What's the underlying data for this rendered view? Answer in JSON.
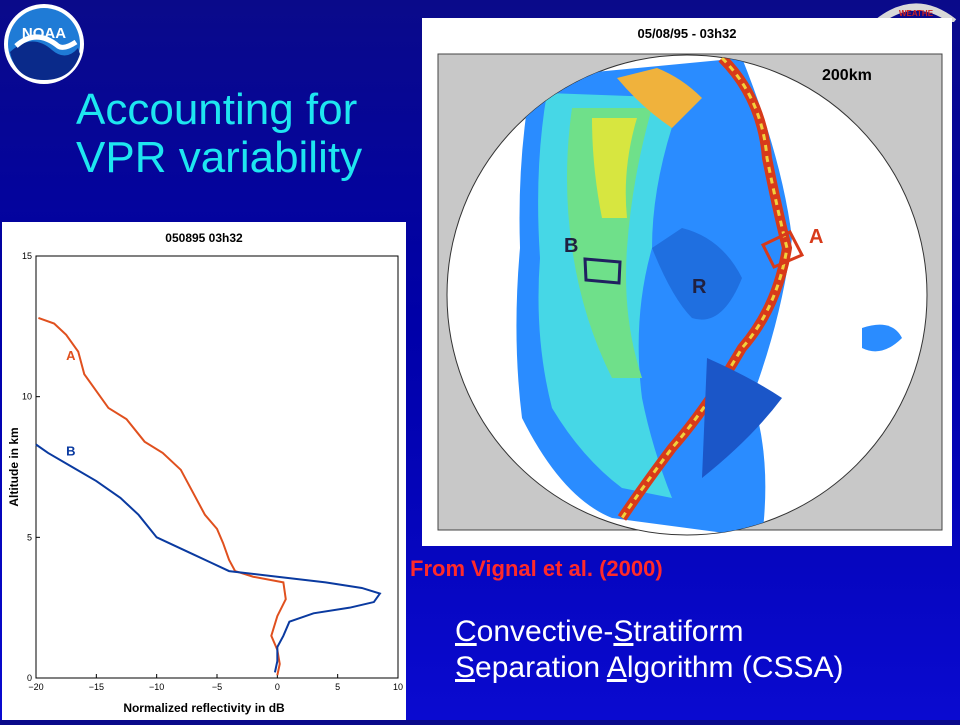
{
  "logo": {
    "text": "NOAA",
    "icon": "noaa-logo-icon",
    "colors": {
      "ring": "#ffffff",
      "sky": "#1f7bd6",
      "sea": "#0a2a8a"
    }
  },
  "weather_logo": {
    "text": "WEATHE",
    "icon": "weather-service-logo-icon"
  },
  "title": {
    "line1": "Accounting for",
    "line2": "VPR variability"
  },
  "radar": {
    "title": "05/08/95 - 03h32",
    "scale": "200km",
    "labels": {
      "a": "A",
      "b": "B",
      "r": "R"
    }
  },
  "credit": "From Vignal et al. (2000)",
  "cssa": {
    "line1": {
      "c": "C",
      "onvective": "onvective-",
      "s": "S",
      "tratiform": "tratiform"
    },
    "line2": {
      "s": "S",
      "eparation": "eparation ",
      "a": "A",
      "lgorithm": "lgorithm (CSSA)"
    }
  },
  "colors": {
    "title": "#1ee6f0",
    "credit": "#ff2a2a",
    "profile_a": "#e0501e",
    "profile_b": "#0a3aa0"
  },
  "chart_data": {
    "type": "line",
    "title": "050895 03h32",
    "xlabel": "Normalized reflectivity in dB",
    "ylabel": "Altitude in km",
    "xlim": [
      -20,
      10
    ],
    "ylim": [
      0,
      15
    ],
    "xticks": [
      "−20",
      "−15",
      "−10",
      "−5",
      "0",
      "5",
      "10"
    ],
    "yticks": [
      "0",
      "5",
      "10",
      "15"
    ],
    "series": [
      {
        "name": "A",
        "points": [
          [
            -19.8,
            12.8
          ],
          [
            -18.5,
            12.6
          ],
          [
            -17.5,
            12.2
          ],
          [
            -16.5,
            11.6
          ],
          [
            -16,
            10.8
          ],
          [
            -15,
            10.2
          ],
          [
            -14,
            9.6
          ],
          [
            -12.5,
            9.2
          ],
          [
            -11,
            8.4
          ],
          [
            -9.5,
            8.0
          ],
          [
            -8,
            7.4
          ],
          [
            -7,
            6.6
          ],
          [
            -6,
            5.8
          ],
          [
            -5,
            5.3
          ],
          [
            -4.5,
            4.8
          ],
          [
            -4,
            4.2
          ],
          [
            -3.5,
            3.8
          ],
          [
            -2,
            3.6
          ],
          [
            0.5,
            3.4
          ],
          [
            0.7,
            2.8
          ],
          [
            0,
            2.2
          ],
          [
            -0.5,
            1.5
          ],
          [
            0,
            1.0
          ],
          [
            0.2,
            0.5
          ],
          [
            0,
            0.1
          ]
        ]
      },
      {
        "name": "B",
        "points": [
          [
            -20,
            8.3
          ],
          [
            -19,
            8.0
          ],
          [
            -17,
            7.5
          ],
          [
            -15,
            7.0
          ],
          [
            -13,
            6.4
          ],
          [
            -11.5,
            5.8
          ],
          [
            -10,
            5.0
          ],
          [
            -9,
            4.8
          ],
          [
            -7,
            4.4
          ],
          [
            -5.5,
            4.1
          ],
          [
            -4,
            3.8
          ],
          [
            0,
            3.6
          ],
          [
            4,
            3.4
          ],
          [
            7,
            3.2
          ],
          [
            8.5,
            3.0
          ],
          [
            8,
            2.7
          ],
          [
            6,
            2.5
          ],
          [
            3,
            2.3
          ],
          [
            1,
            2.0
          ],
          [
            0.5,
            1.5
          ],
          [
            0,
            1.1
          ],
          [
            0,
            0.6
          ],
          [
            -0.2,
            0.2
          ]
        ]
      }
    ],
    "annotations": [
      "A",
      "B"
    ]
  }
}
